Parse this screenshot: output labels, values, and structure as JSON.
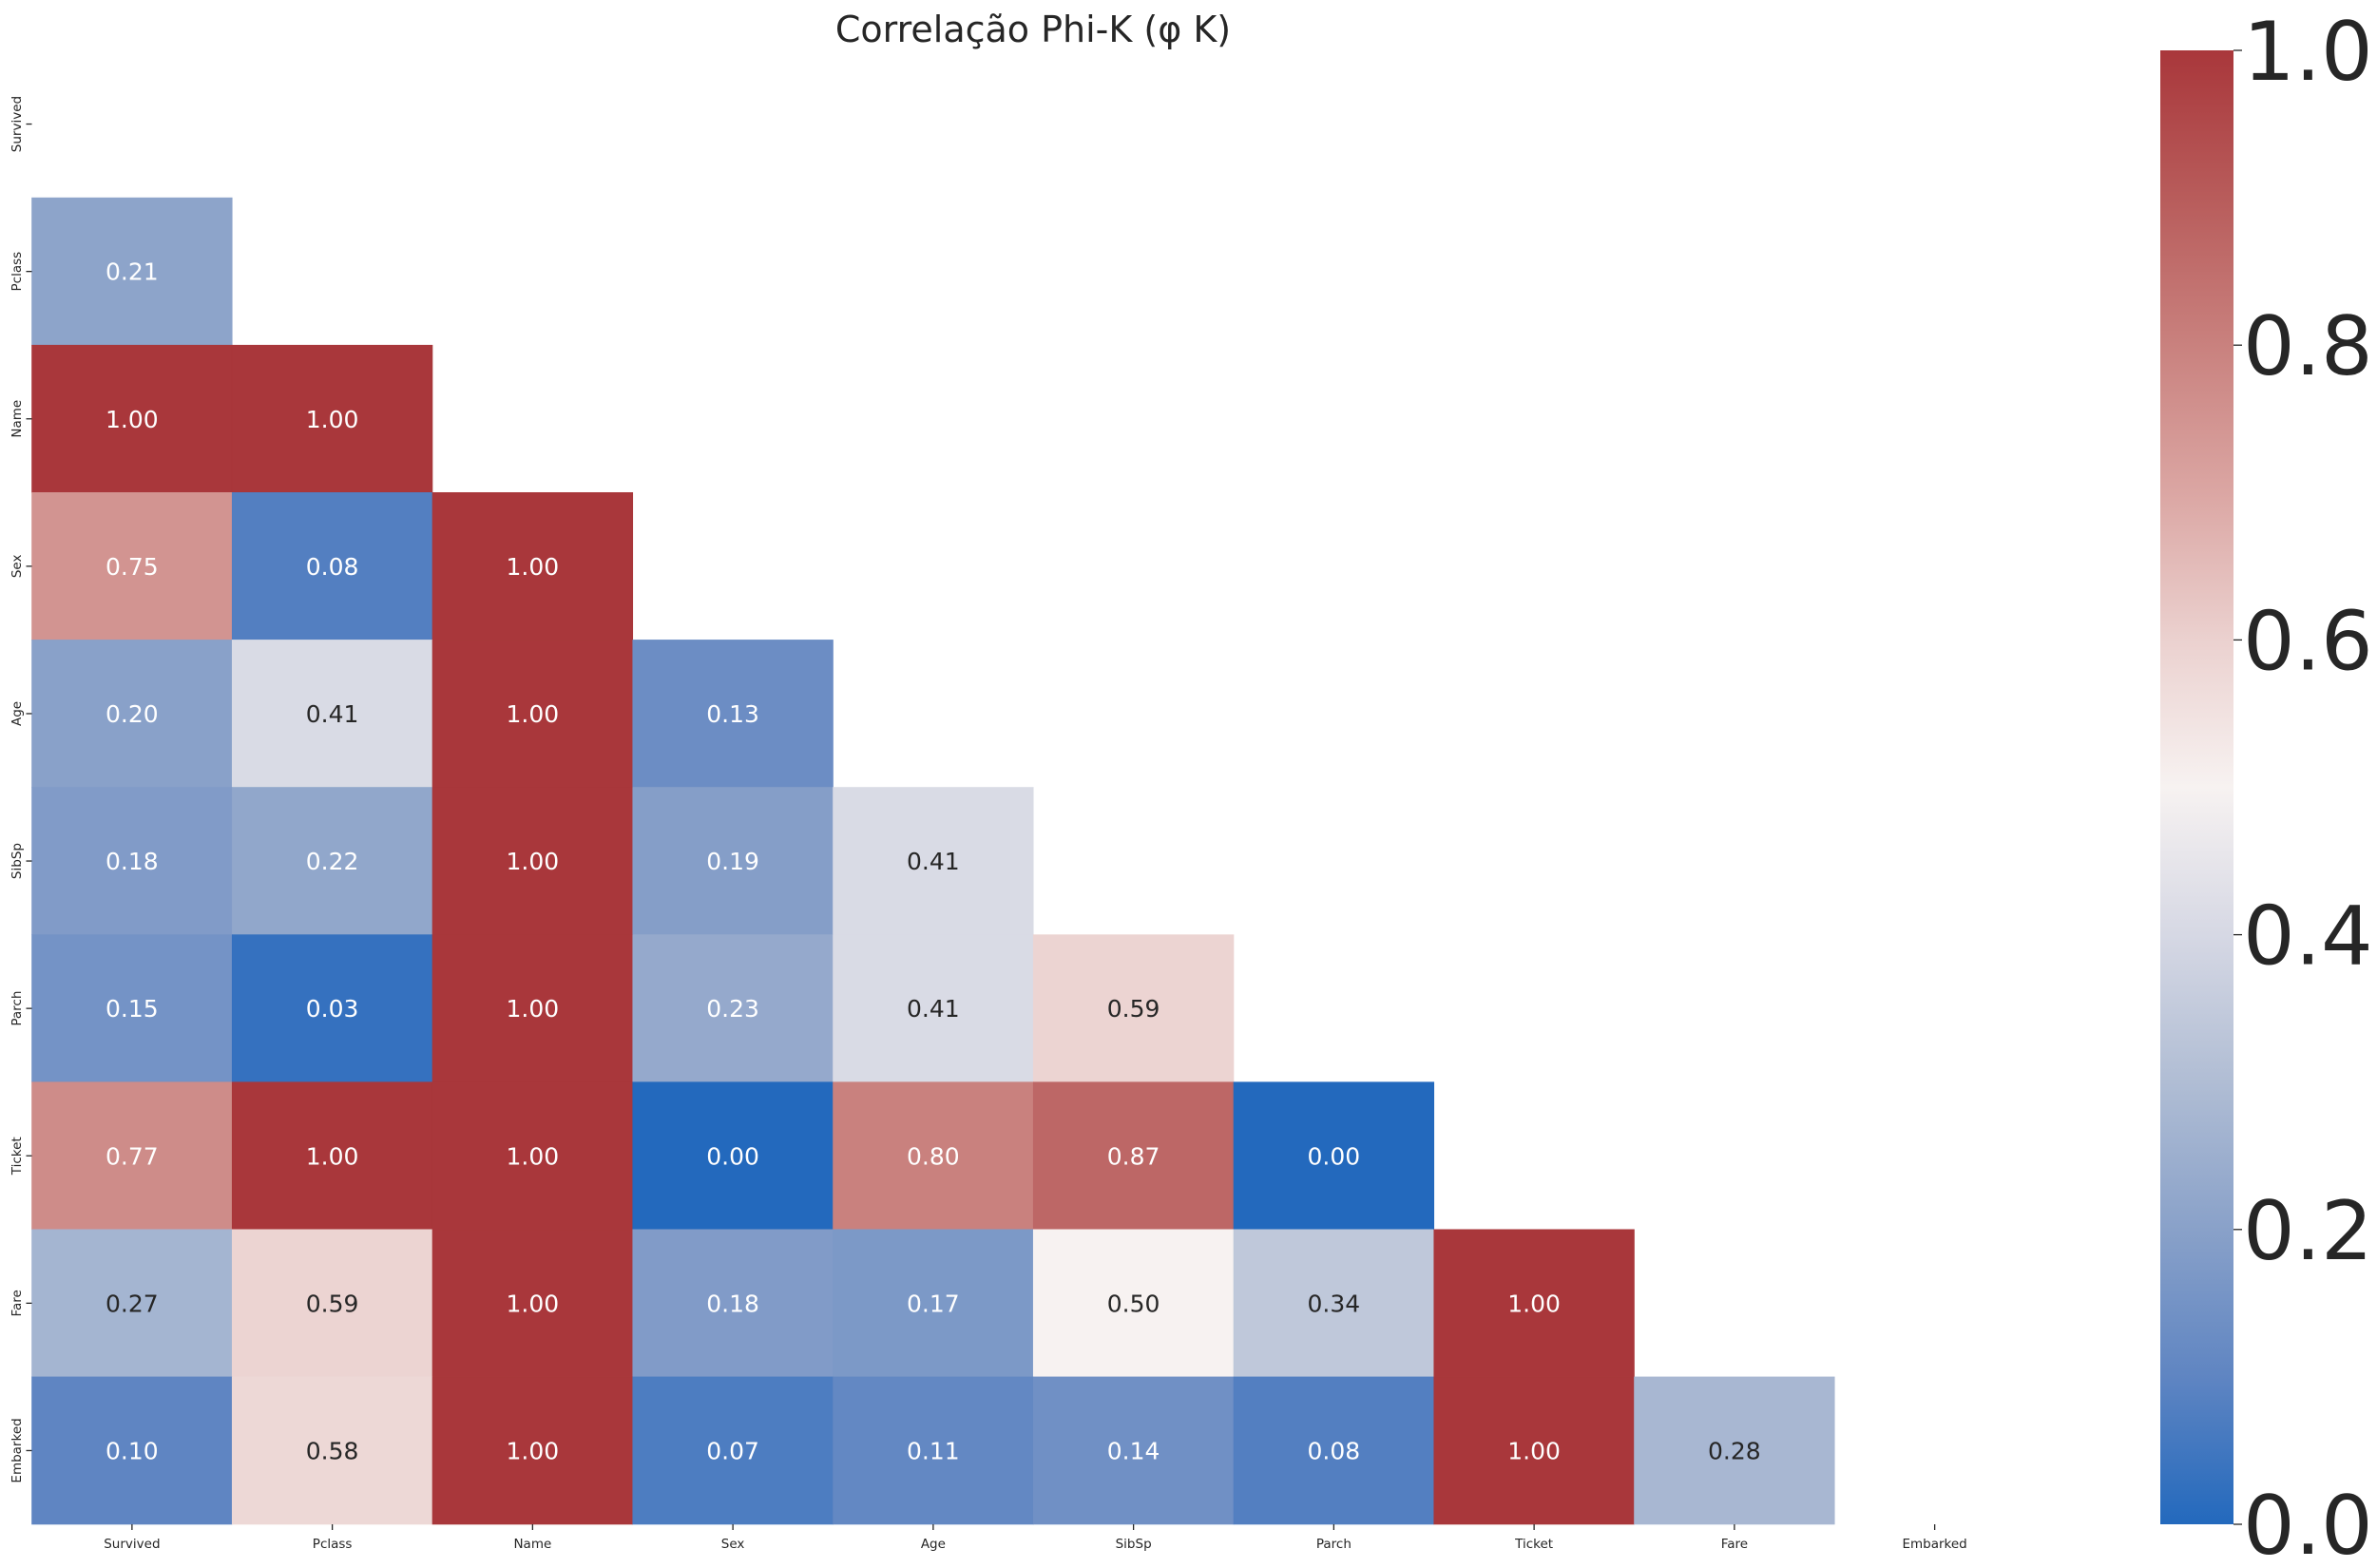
{
  "chart_data": {
    "type": "heatmap",
    "title": "Correlação Phi-K (φ K)",
    "x_labels": [
      "Survived",
      "Pclass",
      "Name",
      "Sex",
      "Age",
      "SibSp",
      "Parch",
      "Ticket",
      "Fare",
      "Embarked"
    ],
    "y_labels": [
      "Survived",
      "Pclass",
      "Name",
      "Sex",
      "Age",
      "SibSp",
      "Parch",
      "Ticket",
      "Fare",
      "Embarked"
    ],
    "values": [
      [
        null,
        null,
        null,
        null,
        null,
        null,
        null,
        null,
        null,
        null
      ],
      [
        0.21,
        null,
        null,
        null,
        null,
        null,
        null,
        null,
        null,
        null
      ],
      [
        1.0,
        1.0,
        null,
        null,
        null,
        null,
        null,
        null,
        null,
        null
      ],
      [
        0.75,
        0.08,
        1.0,
        null,
        null,
        null,
        null,
        null,
        null,
        null
      ],
      [
        0.2,
        0.41,
        1.0,
        0.13,
        null,
        null,
        null,
        null,
        null,
        null
      ],
      [
        0.18,
        0.22,
        1.0,
        0.19,
        0.41,
        null,
        null,
        null,
        null,
        null
      ],
      [
        0.15,
        0.03,
        1.0,
        0.23,
        0.41,
        0.59,
        null,
        null,
        null,
        null
      ],
      [
        0.77,
        1.0,
        1.0,
        0.0,
        0.8,
        0.87,
        0.0,
        null,
        null,
        null
      ],
      [
        0.27,
        0.59,
        1.0,
        0.18,
        0.17,
        0.5,
        0.34,
        1.0,
        null,
        null
      ],
      [
        0.1,
        0.58,
        1.0,
        0.07,
        0.11,
        0.14,
        0.08,
        1.0,
        0.28,
        null
      ]
    ],
    "value_range": [
      0.0,
      1.0
    ],
    "colorbar": {
      "ticks": [
        0.0,
        0.2,
        0.4,
        0.6,
        0.8,
        1.0
      ],
      "tick_labels": [
        "0.0",
        "0.2",
        "0.4",
        "0.6",
        "0.8",
        "1.0"
      ]
    },
    "colors": {
      "colormap": [
        "#2369bd",
        "#5f85c2",
        "#89a1c9",
        "#b0bdd4",
        "#d6d8e4",
        "#f7f2f1",
        "#ebd1cf",
        "#dba6a3",
        "#c9817e",
        "#b85c5b",
        "#a9373b"
      ],
      "annotation_text_light": "#ffffff",
      "annotation_text_dark": "#262626"
    }
  }
}
